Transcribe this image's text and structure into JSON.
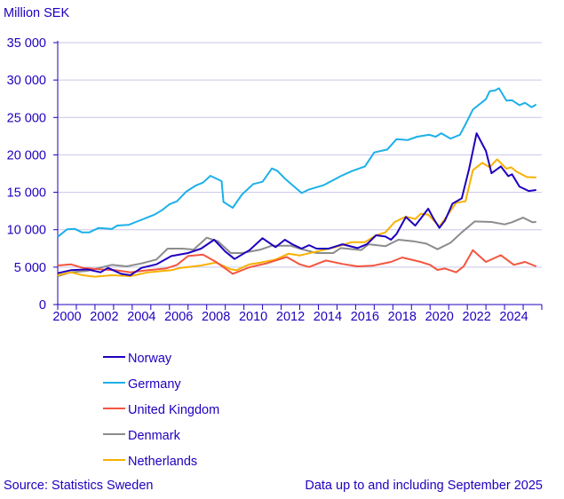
{
  "chart_data": {
    "type": "line",
    "ylabel": "Million SEK",
    "ylim": [
      0,
      35000
    ],
    "yticks": [
      0,
      5000,
      10000,
      15000,
      20000,
      25000,
      30000,
      35000
    ],
    "ytick_labels": [
      "0",
      "5 000",
      "10 000",
      "15 000",
      "20 000",
      "25 000",
      "30 000",
      "35 000"
    ],
    "xlim": [
      2000,
      2026
    ],
    "xtick_labels": [
      "2000",
      "2002",
      "2004",
      "2006",
      "2008",
      "2010",
      "2012",
      "2014",
      "2016",
      "2018",
      "2020",
      "2022",
      "2024"
    ],
    "grid": true,
    "legend_position": "bottom-left",
    "series": [
      {
        "name": "Norway",
        "color": "#1e00be",
        "points": [
          [
            2000,
            4190
          ],
          [
            2000.7,
            4590
          ],
          [
            2001.6,
            4700
          ],
          [
            2002.3,
            4310
          ],
          [
            2002.7,
            4900
          ],
          [
            2003.4,
            4110
          ],
          [
            2003.9,
            3910
          ],
          [
            2004.5,
            4900
          ],
          [
            2005.3,
            5380
          ],
          [
            2006.1,
            6480
          ],
          [
            2007.0,
            6880
          ],
          [
            2007.7,
            7470
          ],
          [
            2008.4,
            8660
          ],
          [
            2009.0,
            7080
          ],
          [
            2009.5,
            6090
          ],
          [
            2010.3,
            7270
          ],
          [
            2011.0,
            8860
          ],
          [
            2011.7,
            7670
          ],
          [
            2012.2,
            8660
          ],
          [
            2012.6,
            8060
          ],
          [
            2013.1,
            7470
          ],
          [
            2013.5,
            7940
          ],
          [
            2013.9,
            7470
          ],
          [
            2014.55,
            7470
          ],
          [
            2015.3,
            8060
          ],
          [
            2016.1,
            7550
          ],
          [
            2016.6,
            8060
          ],
          [
            2017.1,
            9250
          ],
          [
            2017.6,
            9090
          ],
          [
            2017.9,
            8660
          ],
          [
            2018.2,
            9450
          ],
          [
            2018.7,
            11700
          ],
          [
            2019.2,
            10550
          ],
          [
            2019.6,
            11820
          ],
          [
            2019.9,
            12810
          ],
          [
            2020.2,
            11420
          ],
          [
            2020.5,
            10240
          ],
          [
            2020.8,
            11230
          ],
          [
            2021.2,
            13480
          ],
          [
            2021.7,
            14190
          ],
          [
            2022.1,
            18150
          ],
          [
            2022.5,
            22890
          ],
          [
            2023.0,
            20520
          ],
          [
            2023.3,
            17550
          ],
          [
            2023.8,
            18460
          ],
          [
            2024.2,
            17160
          ],
          [
            2024.4,
            17400
          ],
          [
            2024.8,
            15770
          ],
          [
            2025.3,
            15180
          ],
          [
            2025.7,
            15300
          ]
        ]
      },
      {
        "name": "Germany",
        "color": "#1cb0e8",
        "points": [
          [
            2000,
            9050
          ],
          [
            2000.5,
            10050
          ],
          [
            2000.9,
            10120
          ],
          [
            2001.3,
            9650
          ],
          [
            2001.7,
            9650
          ],
          [
            2002.2,
            10240
          ],
          [
            2002.9,
            10100
          ],
          [
            2003.2,
            10560
          ],
          [
            2003.8,
            10640
          ],
          [
            2004.2,
            11030
          ],
          [
            2004.8,
            11620
          ],
          [
            2005.2,
            12020
          ],
          [
            2005.6,
            12610
          ],
          [
            2006.0,
            13400
          ],
          [
            2006.4,
            13800
          ],
          [
            2006.9,
            15080
          ],
          [
            2007.4,
            15890
          ],
          [
            2007.8,
            16290
          ],
          [
            2008.2,
            17200
          ],
          [
            2008.8,
            16490
          ],
          [
            2008.9,
            13720
          ],
          [
            2009.4,
            12930
          ],
          [
            2009.9,
            14710
          ],
          [
            2010.5,
            16100
          ],
          [
            2011.0,
            16410
          ],
          [
            2011.5,
            18190
          ],
          [
            2011.8,
            17870
          ],
          [
            2012.2,
            16840
          ],
          [
            2013.1,
            14900
          ],
          [
            2013.5,
            15380
          ],
          [
            2014.3,
            15970
          ],
          [
            2015.2,
            17160
          ],
          [
            2015.8,
            17830
          ],
          [
            2016.5,
            18460
          ],
          [
            2017.0,
            20320
          ],
          [
            2017.7,
            20720
          ],
          [
            2018.2,
            22100
          ],
          [
            2018.8,
            21980
          ],
          [
            2019.3,
            22420
          ],
          [
            2019.96,
            22690
          ],
          [
            2020.3,
            22420
          ],
          [
            2020.6,
            22890
          ],
          [
            2021.1,
            22180
          ],
          [
            2021.6,
            22690
          ],
          [
            2021.9,
            24080
          ],
          [
            2022.3,
            26050
          ],
          [
            2023.0,
            27440
          ],
          [
            2023.2,
            28500
          ],
          [
            2023.5,
            28620
          ],
          [
            2023.7,
            28900
          ],
          [
            2024.1,
            27240
          ],
          [
            2024.4,
            27300
          ],
          [
            2024.8,
            26650
          ],
          [
            2025.1,
            26960
          ],
          [
            2025.45,
            26370
          ],
          [
            2025.7,
            26720
          ]
        ]
      },
      {
        "name": "United Kingdom",
        "color": "#f4553f",
        "points": [
          [
            2000,
            5220
          ],
          [
            2000.7,
            5380
          ],
          [
            2001.35,
            4900
          ],
          [
            2002.3,
            4700
          ],
          [
            2003.1,
            4590
          ],
          [
            2003.9,
            4310
          ],
          [
            2004.7,
            4550
          ],
          [
            2005.8,
            4820
          ],
          [
            2006.4,
            5300
          ],
          [
            2007.0,
            6480
          ],
          [
            2007.8,
            6680
          ],
          [
            2008.5,
            5690
          ],
          [
            2009.4,
            4110
          ],
          [
            2010.3,
            4980
          ],
          [
            2011.2,
            5490
          ],
          [
            2012.3,
            6360
          ],
          [
            2013.0,
            5380
          ],
          [
            2013.5,
            5020
          ],
          [
            2014.4,
            5890
          ],
          [
            2015.3,
            5420
          ],
          [
            2016.1,
            5100
          ],
          [
            2016.9,
            5180
          ],
          [
            2017.9,
            5690
          ],
          [
            2018.5,
            6290
          ],
          [
            2019.5,
            5690
          ],
          [
            2020.0,
            5300
          ],
          [
            2020.4,
            4630
          ],
          [
            2020.8,
            4820
          ],
          [
            2021.4,
            4310
          ],
          [
            2021.8,
            5100
          ],
          [
            2022.3,
            7270
          ],
          [
            2023.0,
            5690
          ],
          [
            2023.8,
            6600
          ],
          [
            2024.5,
            5300
          ],
          [
            2025.1,
            5690
          ],
          [
            2025.7,
            5100
          ]
        ]
      },
      {
        "name": "Denmark",
        "color": "#8c8c8c",
        "points": [
          [
            2000,
            3800
          ],
          [
            2000.7,
            4310
          ],
          [
            2001.6,
            4510
          ],
          [
            2002.9,
            5300
          ],
          [
            2003.7,
            5100
          ],
          [
            2004.5,
            5490
          ],
          [
            2005.3,
            6010
          ],
          [
            2005.9,
            7470
          ],
          [
            2006.7,
            7470
          ],
          [
            2007.3,
            7350
          ],
          [
            2008.0,
            8930
          ],
          [
            2008.6,
            8460
          ],
          [
            2009.3,
            6880
          ],
          [
            2009.9,
            6880
          ],
          [
            2010.9,
            7350
          ],
          [
            2011.5,
            7870
          ],
          [
            2012.5,
            7870
          ],
          [
            2013.0,
            7470
          ],
          [
            2013.9,
            6880
          ],
          [
            2014.8,
            6880
          ],
          [
            2015.2,
            7550
          ],
          [
            2016.3,
            7280
          ],
          [
            2016.7,
            8060
          ],
          [
            2017.6,
            7800
          ],
          [
            2018.3,
            8660
          ],
          [
            2019.1,
            8460
          ],
          [
            2019.8,
            8140
          ],
          [
            2020.4,
            7390
          ],
          [
            2021.1,
            8260
          ],
          [
            2021.7,
            9650
          ],
          [
            2022.4,
            11110
          ],
          [
            2023.3,
            11030
          ],
          [
            2024.0,
            10710
          ],
          [
            2024.4,
            11000
          ],
          [
            2025.0,
            11620
          ],
          [
            2025.5,
            11000
          ],
          [
            2025.7,
            11030
          ]
        ]
      },
      {
        "name": "Netherlands",
        "color": "#f8b100",
        "points": [
          [
            2000,
            3910
          ],
          [
            2000.7,
            4310
          ],
          [
            2001.35,
            3910
          ],
          [
            2002.0,
            3720
          ],
          [
            2002.9,
            3910
          ],
          [
            2003.9,
            3800
          ],
          [
            2004.85,
            4310
          ],
          [
            2006.1,
            4590
          ],
          [
            2006.6,
            4900
          ],
          [
            2007.7,
            5220
          ],
          [
            2008.5,
            5610
          ],
          [
            2009.3,
            4700
          ],
          [
            2009.6,
            4590
          ],
          [
            2010.3,
            5380
          ],
          [
            2010.9,
            5610
          ],
          [
            2011.7,
            6010
          ],
          [
            2012.4,
            6800
          ],
          [
            2013.0,
            6560
          ],
          [
            2013.9,
            7080
          ],
          [
            2014.9,
            7670
          ],
          [
            2015.8,
            8340
          ],
          [
            2016.5,
            8340
          ],
          [
            2017.1,
            9250
          ],
          [
            2017.6,
            9650
          ],
          [
            2018.1,
            11030
          ],
          [
            2018.7,
            11740
          ],
          [
            2019.2,
            11420
          ],
          [
            2019.5,
            12140
          ],
          [
            2019.9,
            12020
          ],
          [
            2020.5,
            10440
          ],
          [
            2020.9,
            11820
          ],
          [
            2021.4,
            13600
          ],
          [
            2021.9,
            13800
          ],
          [
            2022.3,
            17950
          ],
          [
            2022.8,
            18940
          ],
          [
            2023.2,
            18340
          ],
          [
            2023.6,
            19410
          ],
          [
            2024.1,
            18150
          ],
          [
            2024.35,
            18340
          ],
          [
            2024.65,
            17750
          ],
          [
            2025.2,
            17040
          ],
          [
            2025.7,
            16980
          ]
        ]
      }
    ]
  },
  "footer": {
    "source": "Source: Statistics Sweden",
    "note": "Data up to and including September 2025"
  },
  "colors": {
    "text": "#1e00be",
    "grid": "#cac6e8"
  }
}
